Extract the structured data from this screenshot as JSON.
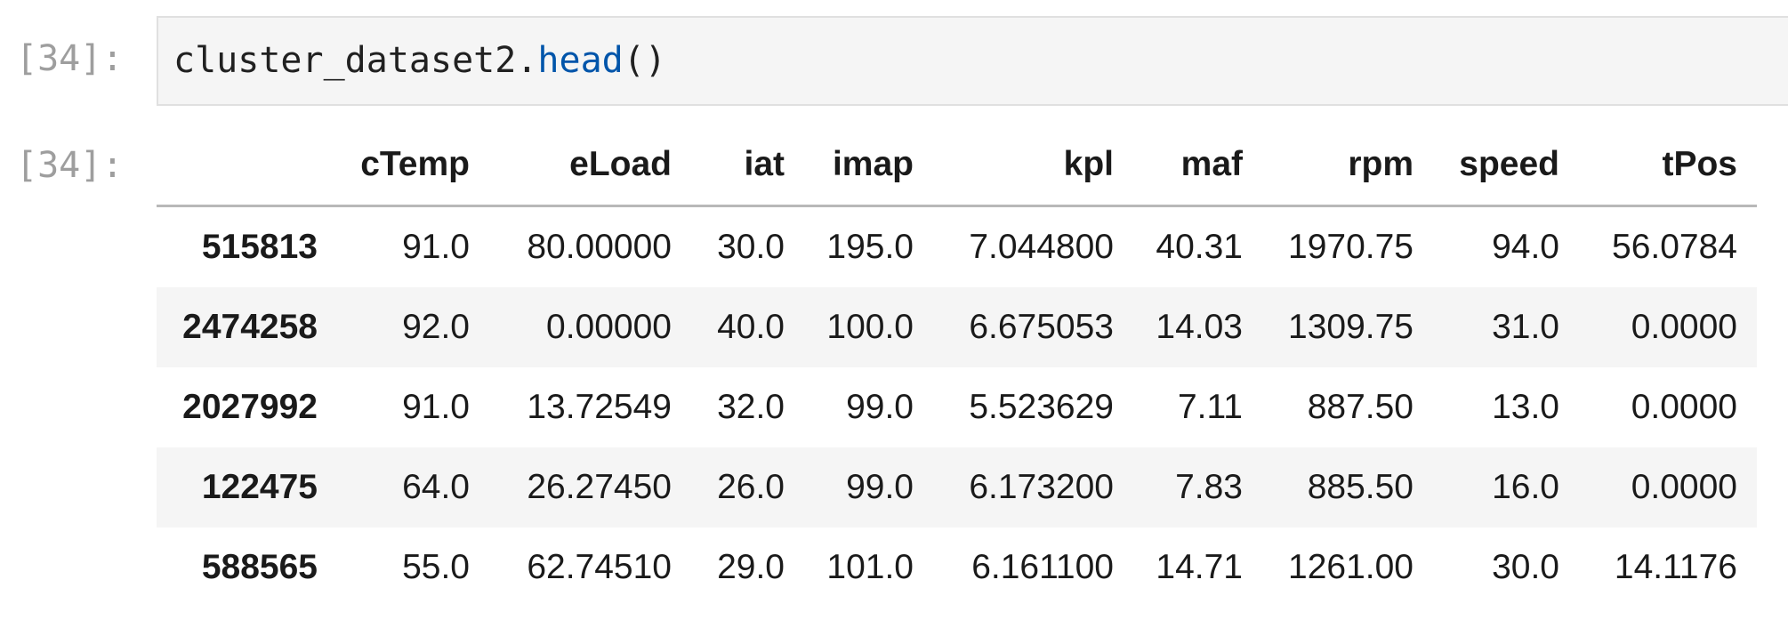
{
  "cell": {
    "input_prompt": "[34]:",
    "output_prompt": "[34]:",
    "code": {
      "object": "cluster_dataset2",
      "dot": ".",
      "method": "head",
      "parens": "()"
    }
  },
  "dataframe": {
    "columns": [
      "cTemp",
      "eLoad",
      "iat",
      "imap",
      "kpl",
      "maf",
      "rpm",
      "speed",
      "tPos"
    ],
    "rows": [
      {
        "index": "515813",
        "values": [
          "91.0",
          "80.00000",
          "30.0",
          "195.0",
          "7.044800",
          "40.31",
          "1970.75",
          "94.0",
          "56.0784"
        ]
      },
      {
        "index": "2474258",
        "values": [
          "92.0",
          "0.00000",
          "40.0",
          "100.0",
          "6.675053",
          "14.03",
          "1309.75",
          "31.0",
          "0.0000"
        ]
      },
      {
        "index": "2027992",
        "values": [
          "91.0",
          "13.72549",
          "32.0",
          "99.0",
          "5.523629",
          "7.11",
          "887.50",
          "13.0",
          "0.0000"
        ]
      },
      {
        "index": "122475",
        "values": [
          "64.0",
          "26.27450",
          "26.0",
          "99.0",
          "6.173200",
          "7.83",
          "885.50",
          "16.0",
          "0.0000"
        ]
      },
      {
        "index": "588565",
        "values": [
          "55.0",
          "62.74510",
          "29.0",
          "101.0",
          "6.161100",
          "14.71",
          "1261.00",
          "30.0",
          "14.1176"
        ]
      }
    ]
  },
  "colors": {
    "prompt": "#9e9e9e",
    "code_method": "#0055aa",
    "input_background": "#f5f5f5",
    "striped_row": "#f5f5f5"
  }
}
